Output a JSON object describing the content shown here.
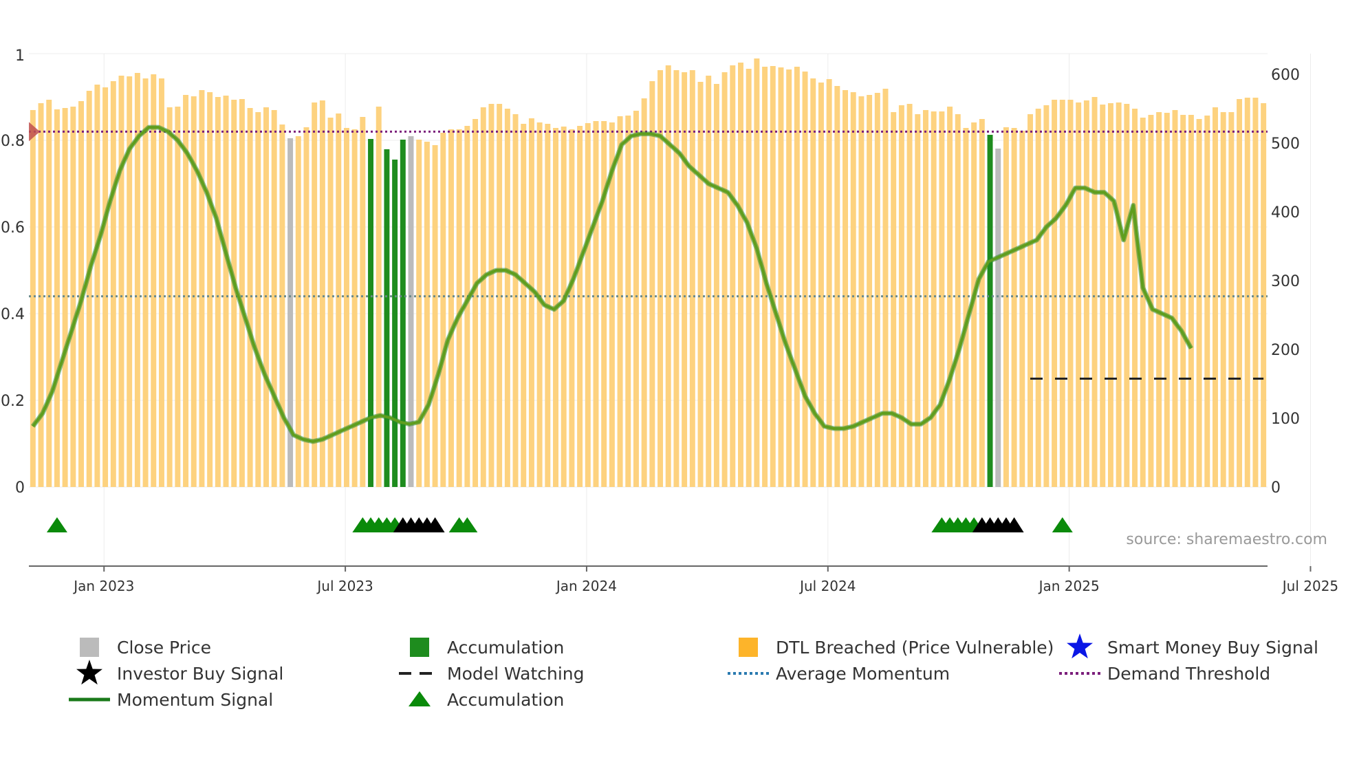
{
  "colors": {
    "close_price": "#bbbbbb",
    "accumulation": "#1e8c1e",
    "dtl_breached": "#fdd27f",
    "momentum_line": "#5f9e1e",
    "momentum_under": "#2e8b2e",
    "threshold": "#7b1f7b",
    "average": "#6a8a8a",
    "model_watching": "#222222",
    "triangle": "#0a8a0a",
    "investor_star": "#000000",
    "smart_money_star": "#0a16e6",
    "grid": "#ececec",
    "axis_text": "#333333",
    "source_text": "#999999"
  },
  "chart_data": {
    "type": "bar",
    "title": "",
    "x_start": "2022-11-01",
    "x_end": "2025-10-08",
    "n_weeks": 154,
    "x_tick_labels": [
      "Jan 2023",
      "Jul 2023",
      "Jan 2024",
      "Jul 2024",
      "Jan 2025",
      "Jul 2025"
    ],
    "x_tick_weeks": [
      9,
      39,
      69,
      99,
      129,
      159
    ],
    "left_axis": {
      "ylim": [
        0,
        1
      ],
      "ticks": [
        0,
        0.2,
        0.4,
        0.6,
        0.8
      ],
      "top_label": "1"
    },
    "right_axis": {
      "ylim": [
        0,
        600
      ],
      "ticks": [
        0,
        100,
        200,
        300,
        400,
        500,
        600
      ]
    },
    "bar_values": [
      548,
      558,
      563,
      549,
      551,
      553,
      561,
      576,
      585,
      581,
      590,
      598,
      597,
      602,
      594,
      600,
      594,
      552,
      553,
      570,
      568,
      577,
      574,
      567,
      569,
      563,
      564,
      551,
      545,
      552,
      548,
      527,
      518,
      510,
      523,
      559,
      562,
      537,
      543,
      522,
      520,
      538,
      532,
      553,
      549,
      535,
      512,
      508,
      505,
      502,
      497,
      515,
      520,
      520,
      525,
      535,
      552,
      557,
      557,
      550,
      542,
      528,
      536,
      530,
      528,
      522,
      524,
      520,
      525,
      529,
      532,
      532,
      530,
      539,
      540,
      547,
      565,
      590,
      606,
      613,
      606,
      603,
      606,
      589,
      598,
      586,
      603,
      613,
      617,
      608,
      623,
      611,
      612,
      610,
      607,
      611,
      604,
      594,
      588,
      593,
      583,
      577,
      574,
      568,
      570,
      573,
      579,
      545,
      555,
      557,
      542,
      548,
      546,
      546,
      553,
      542,
      522,
      530,
      535,
      535,
      525,
      523,
      522,
      518,
      542,
      550,
      555,
      563,
      563,
      563,
      559,
      562,
      567,
      556,
      558,
      559,
      557,
      550,
      537,
      541,
      545,
      544,
      548,
      541,
      541,
      535,
      540,
      552,
      545,
      545,
      564,
      566,
      566,
      558
    ],
    "bar_kinds_legend": {
      "D": "DTL Breached (Price Vulnerable)",
      "G": "Accumulation",
      "C": "Close Price"
    },
    "special_bars": [
      {
        "week": 32,
        "kind": "C",
        "value": 507
      },
      {
        "week": 42,
        "kind": "G",
        "value": 506
      },
      {
        "week": 44,
        "kind": "G",
        "value": 491
      },
      {
        "week": 45,
        "kind": "G",
        "value": 476
      },
      {
        "week": 46,
        "kind": "G",
        "value": 505
      },
      {
        "week": 47,
        "kind": "C",
        "value": 510
      },
      {
        "week": 119,
        "kind": "G",
        "value": 512
      },
      {
        "week": 120,
        "kind": "C",
        "value": 492
      }
    ],
    "momentum_signal": [
      0.14,
      0.17,
      0.22,
      0.29,
      0.36,
      0.43,
      0.51,
      0.58,
      0.66,
      0.73,
      0.78,
      0.81,
      0.83,
      0.83,
      0.82,
      0.8,
      0.77,
      0.73,
      0.68,
      0.62,
      0.54,
      0.46,
      0.39,
      0.32,
      0.26,
      0.21,
      0.16,
      0.12,
      0.11,
      0.105,
      0.11,
      0.12,
      0.13,
      0.14,
      0.15,
      0.16,
      0.165,
      0.16,
      0.15,
      0.145,
      0.15,
      0.19,
      0.26,
      0.34,
      0.39,
      0.43,
      0.47,
      0.49,
      0.5,
      0.5,
      0.49,
      0.47,
      0.45,
      0.42,
      0.41,
      0.43,
      0.48,
      0.54,
      0.6,
      0.66,
      0.73,
      0.79,
      0.81,
      0.815,
      0.815,
      0.81,
      0.79,
      0.77,
      0.74,
      0.72,
      0.7,
      0.69,
      0.68,
      0.65,
      0.61,
      0.55,
      0.47,
      0.4,
      0.33,
      0.27,
      0.21,
      0.17,
      0.14,
      0.135,
      0.135,
      0.14,
      0.15,
      0.16,
      0.17,
      0.17,
      0.16,
      0.145,
      0.145,
      0.16,
      0.19,
      0.25,
      0.32,
      0.4,
      0.48,
      0.52,
      0.53,
      0.54,
      0.55,
      0.56,
      0.57,
      0.6,
      0.62,
      0.65,
      0.69,
      0.69,
      0.68,
      0.68,
      0.66,
      0.57,
      0.65,
      0.46,
      0.41,
      0.4,
      0.39,
      0.36,
      0.32
    ],
    "momentum_start_week": 0,
    "momentum_step_weeks": 1.2,
    "average_momentum": 0.44,
    "demand_threshold": 0.82,
    "model_watching_level": 0.25,
    "model_watching_range_weeks": [
      124,
      153
    ],
    "triangle_weeks": [
      3,
      41,
      42,
      43,
      44,
      45,
      53,
      54,
      113,
      114,
      115,
      116,
      117,
      128
    ],
    "investor_star_weeks": [
      46,
      47,
      48,
      49,
      50,
      118,
      119,
      120,
      121,
      122
    ],
    "smart_money_star_weeks": [],
    "source": "source: sharemaestro.com",
    "legend": [
      {
        "label": "Close Price",
        "marker": "square-gray"
      },
      {
        "label": "Accumulation",
        "marker": "square-green"
      },
      {
        "label": "DTL Breached (Price Vulnerable)",
        "marker": "square-orange"
      },
      {
        "label": "Smart Money Buy Signal",
        "marker": "star-blue"
      },
      {
        "label": "Investor Buy Signal",
        "marker": "star-black"
      },
      {
        "label": "Model Watching",
        "marker": "dash-black"
      },
      {
        "label": "Average Momentum",
        "marker": "dot-blue"
      },
      {
        "label": "Demand Threshold",
        "marker": "dot-purple"
      },
      {
        "label": "Momentum Signal",
        "marker": "line-green"
      },
      {
        "label": "Accumulation",
        "marker": "triangle-green"
      }
    ]
  }
}
